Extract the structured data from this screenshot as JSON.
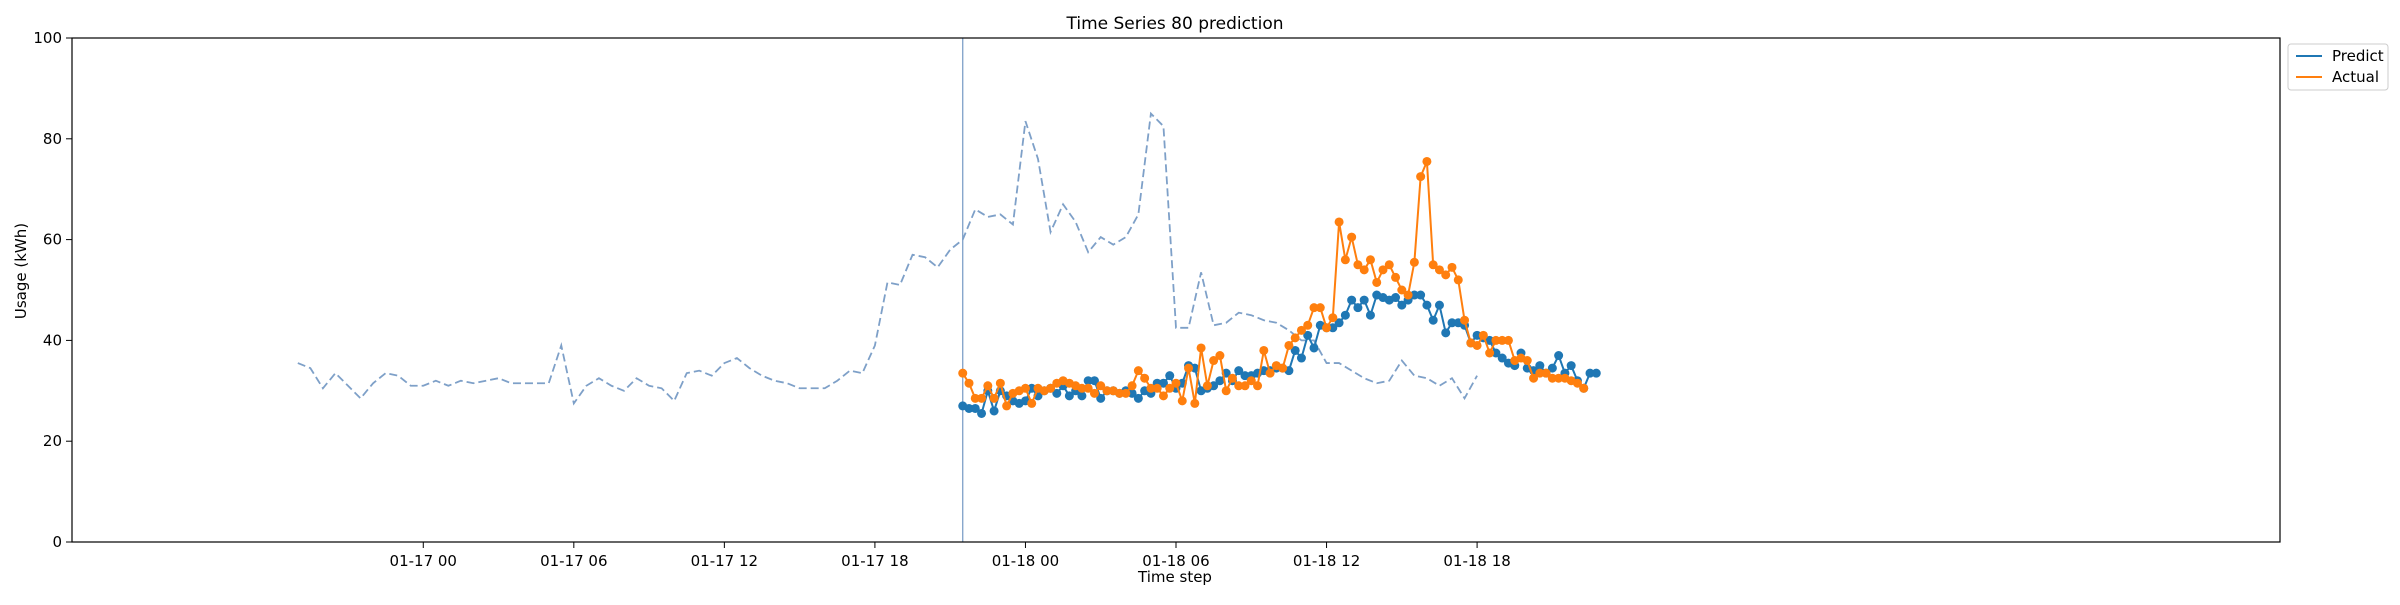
{
  "chart_data": {
    "type": "line",
    "title": "Time Series 80 prediction",
    "xlabel": "Time step",
    "ylabel": "Usage (kWh)",
    "ylim": [
      0,
      100
    ],
    "xlim_hours": [
      -14,
      74
    ],
    "x_unit": "hours after 01-17 00:00",
    "yticks": [
      0,
      20,
      40,
      60,
      80,
      100
    ],
    "xticks": [
      {
        "value": 0,
        "label": "01-17 00"
      },
      {
        "value": 6,
        "label": "01-17 06"
      },
      {
        "value": 12,
        "label": "01-17 12"
      },
      {
        "value": 18,
        "label": "01-17 18"
      },
      {
        "value": 24,
        "label": "01-18 00"
      },
      {
        "value": 30,
        "label": "01-18 06"
      },
      {
        "value": 36,
        "label": "01-18 12"
      },
      {
        "value": 42,
        "label": "01-18 18"
      }
    ],
    "forecast_start": 21.5,
    "legend": {
      "placement": "upper-right-outside",
      "entries": [
        "Predict",
        "Actual"
      ]
    },
    "grid": false,
    "history": {
      "color": "#7ea0c8",
      "style": "dashed",
      "x_start": -5.0,
      "x_step": 0.5,
      "values": [
        35.5,
        34.5,
        30.5,
        33.5,
        31.0,
        28.5,
        31.5,
        33.5,
        33.0,
        31.0,
        31.0,
        32.0,
        31.0,
        32.0,
        31.5,
        32.0,
        32.5,
        31.5,
        31.5,
        31.5,
        31.5,
        39.0,
        27.5,
        31.0,
        32.5,
        31.0,
        30.0,
        32.5,
        31.0,
        30.5,
        28.0,
        33.5,
        34.0,
        33.0,
        35.5,
        36.5,
        34.5,
        33.0,
        32.0,
        31.5,
        30.5,
        30.5,
        30.5,
        32.0,
        34.0,
        33.5,
        39.0,
        51.5,
        51.0,
        57.0,
        56.5,
        54.5,
        58.0,
        60.0,
        66.0,
        64.5,
        65.0,
        63.0,
        83.5,
        76.0,
        61.5,
        67.0,
        63.5,
        57.5,
        60.5,
        59.0,
        60.5,
        65.0,
        85.0,
        82.5,
        42.5,
        42.5,
        53.5,
        43.0,
        43.5,
        45.5,
        45.0,
        44.0,
        43.5,
        42.0,
        40.0,
        40.0,
        35.5,
        35.5,
        34.0,
        32.5,
        31.5,
        32.0,
        36.0,
        33.0,
        32.5,
        31.0,
        32.5,
        28.5,
        33.0
      ]
    },
    "series": [
      {
        "name": "Predict",
        "color": "#1f77b4",
        "x_start": 21.5,
        "x_step": 0.25,
        "values": [
          27.0,
          26.5,
          26.5,
          25.5,
          30.0,
          26.0,
          30.0,
          29.0,
          28.0,
          27.5,
          28.0,
          30.5,
          29.0,
          30.0,
          30.5,
          29.5,
          31.0,
          29.0,
          30.0,
          29.0,
          32.0,
          32.0,
          28.5,
          30.0,
          30.0,
          29.5,
          30.0,
          29.5,
          28.5,
          30.0,
          29.5,
          31.5,
          31.5,
          33.0,
          30.5,
          31.5,
          35.0,
          34.5,
          30.0,
          30.5,
          31.0,
          32.0,
          33.5,
          32.0,
          34.0,
          33.0,
          33.0,
          33.5,
          34.0,
          34.0,
          34.5,
          34.5,
          34.0,
          38.0,
          36.5,
          41.0,
          38.5,
          43.0,
          42.5,
          42.5,
          43.5,
          45.0,
          48.0,
          46.5,
          48.0,
          45.0,
          49.0,
          48.5,
          48.0,
          48.5,
          47.0,
          48.0,
          49.0,
          49.0,
          47.0,
          44.0,
          47.0,
          41.5,
          43.5,
          43.5,
          43.0,
          39.5,
          41.0,
          40.5,
          40.0,
          37.5,
          36.5,
          35.5,
          35.0,
          37.5,
          34.5,
          34.0,
          35.0,
          33.5,
          34.5,
          37.0,
          33.5,
          35.0,
          32.0,
          30.5,
          33.5,
          33.5
        ]
      },
      {
        "name": "Actual",
        "color": "#ff7f0e",
        "x_start": 21.5,
        "x_step": 0.25,
        "values": [
          33.5,
          31.5,
          28.5,
          28.5,
          31.0,
          28.5,
          31.5,
          27.0,
          29.5,
          30.0,
          30.5,
          27.5,
          30.5,
          30.0,
          30.5,
          31.5,
          32.0,
          31.5,
          31.0,
          30.5,
          30.5,
          29.5,
          31.0,
          30.0,
          30.0,
          29.5,
          29.5,
          31.0,
          34.0,
          32.5,
          30.5,
          30.5,
          29.0,
          30.5,
          31.5,
          28.0,
          34.5,
          27.5,
          38.5,
          31.0,
          36.0,
          37.0,
          30.0,
          32.5,
          31.0,
          31.0,
          32.0,
          31.0,
          38.0,
          33.5,
          35.0,
          34.5,
          39.0,
          40.5,
          42.0,
          43.0,
          46.5,
          46.5,
          42.5,
          44.5,
          63.5,
          56.0,
          60.5,
          55.0,
          54.0,
          56.0,
          51.5,
          54.0,
          55.0,
          52.5,
          50.0,
          49.0,
          55.5,
          72.5,
          75.5,
          55.0,
          54.0,
          53.0,
          54.5,
          52.0,
          44.0,
          39.5,
          39.0,
          41.0,
          37.5,
          40.0,
          40.0,
          40.0,
          36.0,
          36.5,
          36.0,
          32.5,
          33.5,
          33.5,
          32.5,
          32.5,
          32.5,
          32.0,
          31.5,
          30.5
        ]
      }
    ]
  }
}
